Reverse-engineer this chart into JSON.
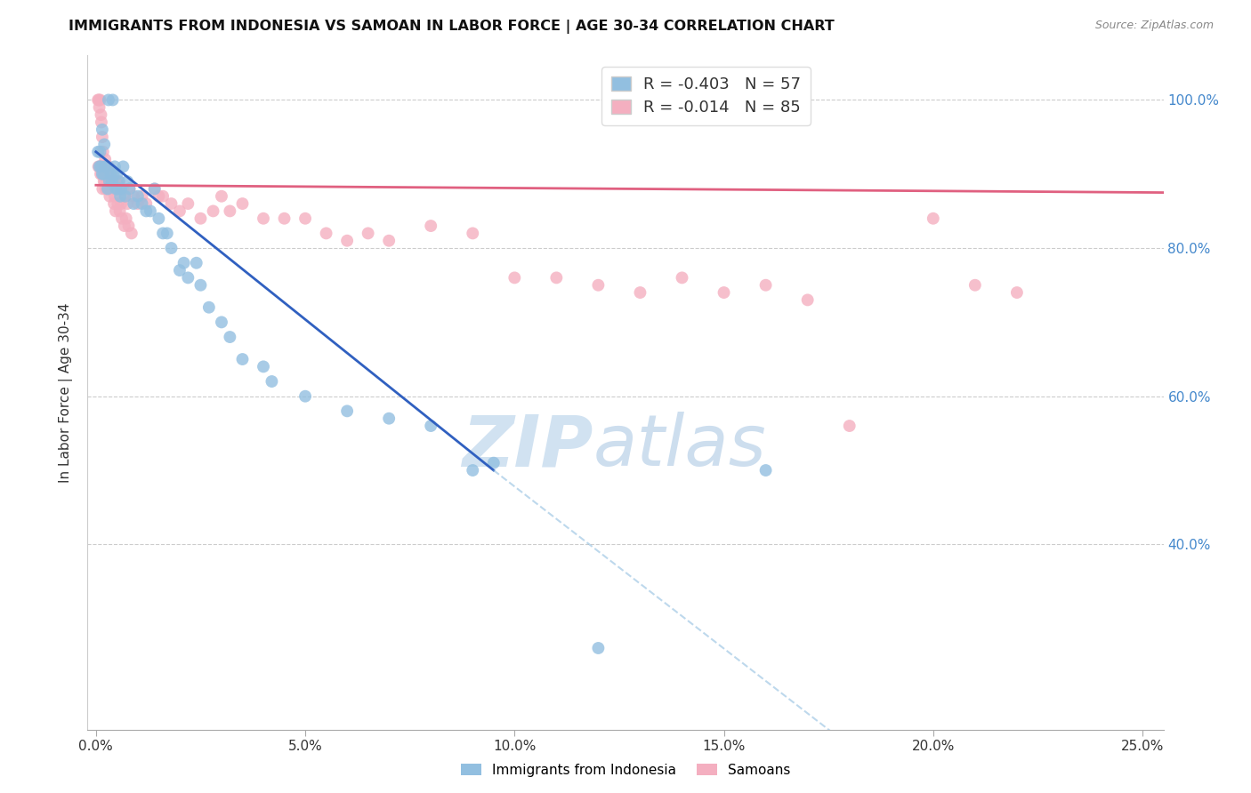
{
  "title": "IMMIGRANTS FROM INDONESIA VS SAMOAN IN LABOR FORCE | AGE 30-34 CORRELATION CHART",
  "source": "Source: ZipAtlas.com",
  "ylabel": "In Labor Force | Age 30-34",
  "x_tick_labels": [
    "0.0%",
    "5.0%",
    "10.0%",
    "15.0%",
    "20.0%",
    "25.0%"
  ],
  "x_tick_vals": [
    0.0,
    5.0,
    10.0,
    15.0,
    20.0,
    25.0
  ],
  "y_tick_labels": [
    "40.0%",
    "60.0%",
    "80.0%",
    "100.0%"
  ],
  "y_tick_vals": [
    40.0,
    60.0,
    80.0,
    100.0
  ],
  "xlim": [
    -0.2,
    25.5
  ],
  "ylim": [
    15.0,
    106.0
  ],
  "legend_label_blue": "R = -0.403   N = 57",
  "legend_label_pink": "R = -0.014   N = 85",
  "legend_label_blue2": "Immigrants from Indonesia",
  "legend_label_pink2": "Samoans",
  "blue_color": "#92bfe0",
  "pink_color": "#f4afc0",
  "blue_line_color": "#3060c0",
  "pink_line_color": "#e06080",
  "indonesia_x": [
    0.3,
    0.4,
    0.15,
    0.2,
    0.25,
    0.35,
    0.45,
    0.5,
    0.55,
    0.6,
    0.65,
    0.7,
    0.75,
    0.8,
    0.9,
    1.0,
    1.1,
    1.2,
    1.3,
    1.4,
    1.5,
    1.6,
    1.7,
    1.8,
    2.0,
    2.1,
    2.2,
    2.4,
    2.5,
    2.7,
    3.0,
    3.2,
    3.5,
    4.0,
    4.2,
    5.0,
    6.0,
    7.0,
    8.0,
    9.0,
    9.5,
    12.0,
    0.05,
    0.08,
    0.1,
    0.12,
    0.15,
    0.18,
    0.22,
    0.28,
    0.32,
    0.38,
    0.42,
    0.48,
    0.52,
    0.58,
    16.0
  ],
  "indonesia_y": [
    100.0,
    100.0,
    96.0,
    94.0,
    91.0,
    90.0,
    91.0,
    90.0,
    89.0,
    88.0,
    91.0,
    87.0,
    89.0,
    88.0,
    86.0,
    87.0,
    86.0,
    85.0,
    85.0,
    88.0,
    84.0,
    82.0,
    82.0,
    80.0,
    77.0,
    78.0,
    76.0,
    78.0,
    75.0,
    72.0,
    70.0,
    68.0,
    65.0,
    64.0,
    62.0,
    60.0,
    58.0,
    57.0,
    56.0,
    50.0,
    51.0,
    26.0,
    93.0,
    91.0,
    93.0,
    91.0,
    90.0,
    90.0,
    91.0,
    88.0,
    89.0,
    89.0,
    90.0,
    88.0,
    88.0,
    87.0,
    50.0
  ],
  "samoan_x": [
    0.05,
    0.07,
    0.08,
    0.1,
    0.12,
    0.13,
    0.15,
    0.17,
    0.18,
    0.2,
    0.22,
    0.25,
    0.27,
    0.3,
    0.32,
    0.35,
    0.38,
    0.4,
    0.42,
    0.45,
    0.48,
    0.5,
    0.55,
    0.6,
    0.65,
    0.7,
    0.75,
    0.8,
    0.9,
    1.0,
    1.1,
    1.2,
    1.4,
    1.5,
    1.6,
    1.8,
    2.0,
    2.2,
    2.5,
    2.8,
    3.0,
    3.2,
    3.5,
    4.0,
    4.5,
    5.0,
    5.5,
    6.0,
    6.5,
    7.0,
    8.0,
    9.0,
    10.0,
    11.0,
    12.0,
    13.0,
    14.0,
    15.0,
    16.0,
    17.0,
    18.0,
    20.0,
    21.0,
    22.0,
    0.06,
    0.09,
    0.11,
    0.14,
    0.16,
    0.19,
    0.21,
    0.23,
    0.26,
    0.28,
    0.33,
    0.36,
    0.43,
    0.47,
    0.52,
    0.57,
    0.62,
    0.68,
    0.72,
    0.78,
    0.85
  ],
  "samoan_y": [
    100.0,
    100.0,
    99.0,
    100.0,
    98.0,
    97.0,
    95.0,
    93.0,
    91.0,
    91.0,
    92.0,
    90.0,
    90.0,
    91.0,
    89.0,
    89.0,
    90.0,
    89.0,
    88.0,
    87.0,
    89.0,
    88.0,
    89.0,
    86.0,
    88.0,
    87.0,
    86.0,
    88.0,
    87.0,
    86.0,
    87.0,
    86.0,
    88.0,
    87.0,
    87.0,
    86.0,
    85.0,
    86.0,
    84.0,
    85.0,
    87.0,
    85.0,
    86.0,
    84.0,
    84.0,
    84.0,
    82.0,
    81.0,
    82.0,
    81.0,
    83.0,
    82.0,
    76.0,
    76.0,
    75.0,
    74.0,
    76.0,
    74.0,
    75.0,
    73.0,
    56.0,
    84.0,
    75.0,
    74.0,
    91.0,
    91.0,
    90.0,
    90.0,
    88.0,
    89.0,
    89.0,
    88.0,
    89.0,
    88.0,
    87.0,
    88.0,
    86.0,
    85.0,
    86.0,
    85.0,
    84.0,
    83.0,
    84.0,
    83.0,
    82.0
  ],
  "blue_reg_x0": 0.0,
  "blue_reg_y0": 93.0,
  "blue_reg_x1": 9.5,
  "blue_reg_y1": 50.0,
  "blue_reg_xdash0": 9.5,
  "blue_reg_ydash0": 50.0,
  "blue_reg_xdash1": 25.5,
  "blue_reg_ydash1": -20.0,
  "pink_reg_x0": 0.0,
  "pink_reg_y0": 88.5,
  "pink_reg_x1": 25.5,
  "pink_reg_y1": 87.5
}
